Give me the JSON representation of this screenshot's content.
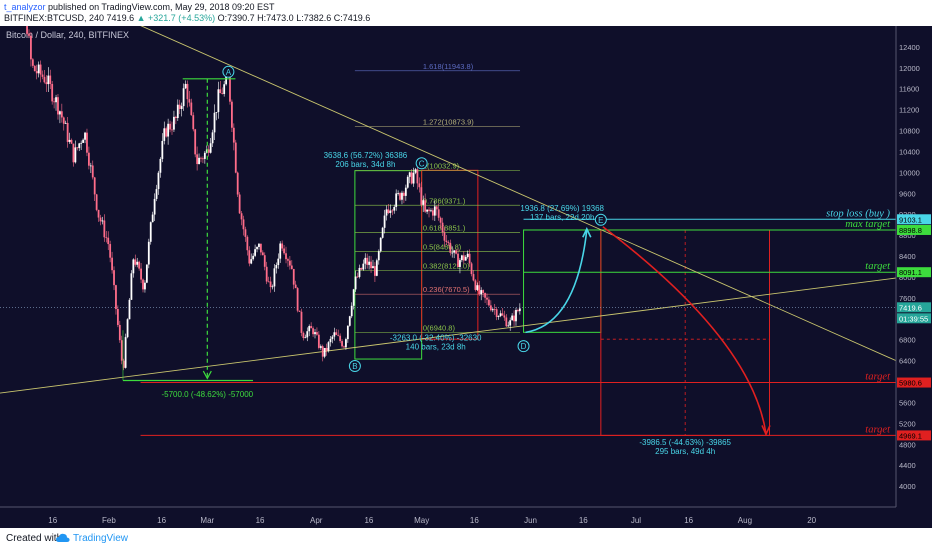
{
  "header": {
    "author": "t_analyzor",
    "published": "published on TradingView.com, May 29, 2018 09:20 EST",
    "symbol": "BITFINEX:BTCUSD, 240",
    "last": "7419.6",
    "change": "+321.7 (+4.53%)",
    "open": "O:7390.7",
    "high": "H:7473.0",
    "low": "L:7382.6",
    "close": "C:7419.6"
  },
  "footer": {
    "created": "Created with",
    "brand": "TradingView"
  },
  "colors": {
    "bg": "#0f0f2a",
    "up_candle": "#ffffff",
    "down_candle": "#ff6d8a",
    "green": "#3ddc3d",
    "red": "#e02020",
    "cyan": "#49d6e8",
    "trend": "#c9c56e",
    "fib": "#8bc34a"
  },
  "chart_data": {
    "type": "candlestick",
    "title": "Bitcoin / Dollar, 240, BITFINEX",
    "ylim": [
      3600,
      12800
    ],
    "y_ticks": [
      4000,
      4400,
      4800,
      5200,
      5600,
      6000,
      6400,
      6800,
      7200,
      7600,
      8000,
      8400,
      8800,
      9200,
      9600,
      10000,
      10400,
      10800,
      11200,
      11600,
      12000,
      12400
    ],
    "x_ticks": [
      "16",
      "Feb",
      "16",
      "Mar",
      "16",
      "Apr",
      "16",
      "May",
      "16",
      "Jun",
      "16",
      "Jul",
      "16",
      "Aug",
      "20"
    ],
    "x_tick_days": [
      15,
      31,
      46,
      59,
      74,
      90,
      105,
      120,
      135,
      151,
      166,
      181,
      196,
      212,
      231
    ],
    "xlim_days": [
      0,
      255
    ],
    "price_path_days": [
      0,
      5,
      9,
      13,
      17,
      21,
      24,
      28,
      31,
      35,
      38,
      41,
      44,
      47,
      50,
      53,
      56,
      59,
      62,
      65,
      68,
      71,
      74,
      77,
      80,
      83,
      86,
      89,
      92,
      95,
      98,
      101,
      104,
      107,
      110,
      113,
      116,
      118,
      121,
      124,
      127,
      130,
      133,
      136,
      139,
      142,
      145,
      148
    ],
    "price_path_values": [
      13000,
      14500,
      12000,
      11800,
      11200,
      10300,
      10800,
      9200,
      8600,
      6200,
      8400,
      7800,
      9600,
      10800,
      11000,
      11700,
      10200,
      10400,
      11400,
      11800,
      9400,
      8300,
      8600,
      7700,
      8700,
      8200,
      6900,
      7000,
      6500,
      6900,
      6700,
      7900,
      8300,
      8100,
      9300,
      9500,
      9800,
      10000,
      9200,
      9300,
      8700,
      8300,
      8400,
      7700,
      7500,
      7300,
      7100,
      7420
    ],
    "current_price": 7419.6,
    "current_price_label": "7419.6",
    "countdown_label": "01:39:55",
    "waves": [
      {
        "label": "A",
        "day": 65,
        "price": 11790
      },
      {
        "label": "B",
        "day": 101,
        "price": 6430
      },
      {
        "label": "C",
        "day": 120,
        "price": 10040
      },
      {
        "label": "D",
        "day": 149,
        "price": 6810
      },
      {
        "label": "E",
        "day": 171,
        "price": 8960
      }
    ],
    "levels": [
      {
        "name": "stop loss (buy )",
        "price": 9103.1,
        "tag": "9103.1",
        "color": "#49d6e8"
      },
      {
        "name": "max target",
        "price": 8898.8,
        "tag": "8898.8",
        "color": "#3ddc3d"
      },
      {
        "name": "target",
        "price": 8091.1,
        "tag": "8091.1",
        "color": "#3ddc3d"
      },
      {
        "name": "target",
        "price": 5980.6,
        "tag": "5980.6",
        "color": "#e02020"
      },
      {
        "name": "target",
        "price": 4969.1,
        "tag": "4969.1",
        "color": "#e02020"
      }
    ],
    "fib_levels": [
      {
        "label": "1.618(11943.8)",
        "price": 11943.8,
        "color": "#5c6bc0"
      },
      {
        "label": "1.272(10873.9)",
        "price": 10873.9,
        "color": "#b5b07a"
      },
      {
        "label": "1(10032.9)",
        "price": 10032.9,
        "color": "#8bc34a"
      },
      {
        "label": "0.786(9371.)",
        "price": 9371,
        "color": "#8bc34a"
      },
      {
        "label": "0.618(8851.)",
        "price": 8851,
        "color": "#8bc34a"
      },
      {
        "label": "0.5(8486.8)",
        "price": 8486.8,
        "color": "#8bc34a"
      },
      {
        "label": "0.382(8122.0)",
        "price": 8122,
        "color": "#8bc34a"
      },
      {
        "label": "0.236(7670.5)",
        "price": 7670.5,
        "color": "#e57373"
      },
      {
        "label": "0(6940.8)",
        "price": 6940.8,
        "color": "#8bc34a"
      }
    ],
    "measurements": [
      {
        "line1": "-5700.0 (-48.62%) -57000",
        "line2": "",
        "color": "#3ddc3d"
      },
      {
        "line1": "3638.6 (56.72%) 36386",
        "line2": "206 bars, 34d 8h",
        "color": "#49d6e8"
      },
      {
        "line1": "-3263.0 (-32.40%) -32630",
        "line2": "140 bars, 23d 8h",
        "color": "#49d6e8"
      },
      {
        "line1": "1936.8 (27.69%) 19368",
        "line2": "137 bars, 22d 20h",
        "color": "#49d6e8"
      },
      {
        "line1": "-3986.5 (-44.63%) -39865",
        "line2": "295 bars, 49d 4h",
        "color": "#49d6e8"
      }
    ]
  }
}
